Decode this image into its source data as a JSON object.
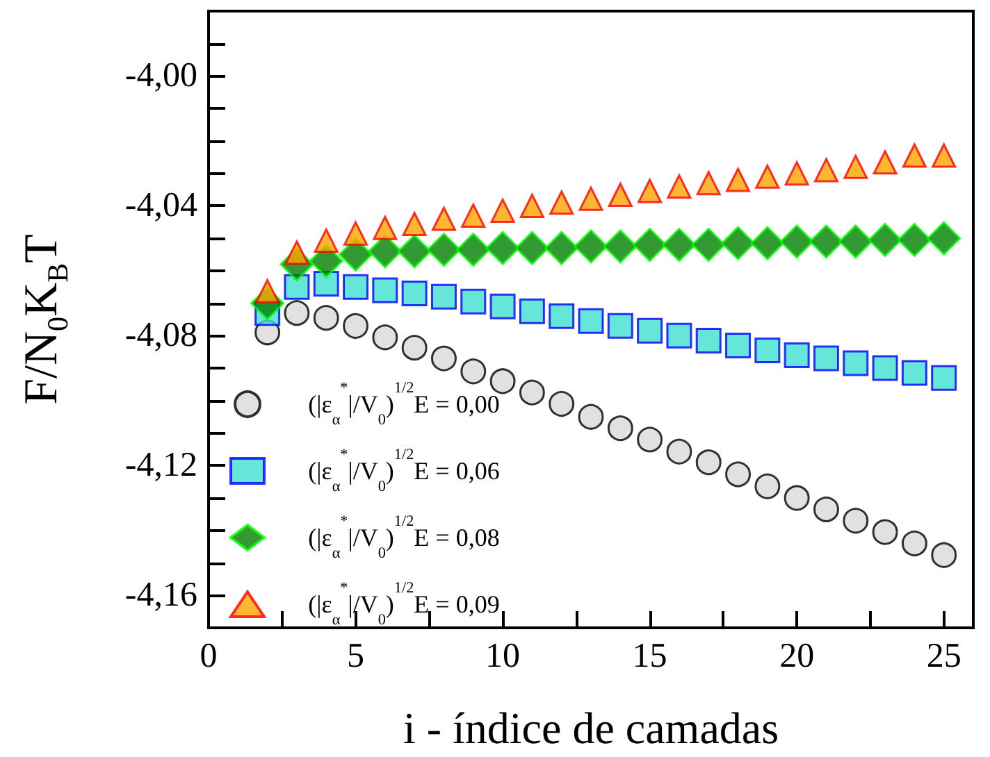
{
  "chart_data": {
    "type": "scatter",
    "xlabel": "i - índice de camadas",
    "ylabel": "F/N$_{0}$K$_{B}$T",
    "x": [
      2,
      3,
      4,
      5,
      6,
      7,
      8,
      9,
      10,
      11,
      12,
      13,
      14,
      15,
      16,
      17,
      18,
      19,
      20,
      21,
      22,
      23,
      24,
      25
    ],
    "xlim": [
      0,
      26
    ],
    "xticks": [
      0,
      {
        "value": 2.5,
        "label": null
      },
      5,
      {
        "value": 7.5,
        "label": null
      },
      10,
      {
        "value": 12.5,
        "label": null
      },
      15,
      {
        "value": 17.5,
        "label": null
      },
      20,
      {
        "value": 22.5,
        "label": null
      },
      25
    ],
    "ylim": [
      -4.17,
      -3.98
    ],
    "yticks": [
      {
        "value": -4.17,
        "label": null
      },
      {
        "value": -4.16,
        "label": "-4,16"
      },
      {
        "value": -4.15,
        "label": null
      },
      {
        "value": -4.14,
        "label": null
      },
      {
        "value": -4.13,
        "label": null
      },
      {
        "value": -4.12,
        "label": "-4,12"
      },
      {
        "value": -4.11,
        "label": null
      },
      {
        "value": -4.1,
        "label": null
      },
      {
        "value": -4.09,
        "label": null
      },
      {
        "value": -4.08,
        "label": "-4,08"
      },
      {
        "value": -4.07,
        "label": null
      },
      {
        "value": -4.06,
        "label": null
      },
      {
        "value": -4.05,
        "label": null
      },
      {
        "value": -4.04,
        "label": "-4,04"
      },
      {
        "value": -4.03,
        "label": null
      },
      {
        "value": -4.02,
        "label": null
      },
      {
        "value": -4.01,
        "label": null
      },
      {
        "value": -4,
        "label": "-4,00"
      },
      {
        "value": -3.99,
        "label": null
      }
    ],
    "legend": "bottom left",
    "series": [
      {
        "name": "(|ε$_{α}$$^{*}$|/V$_{0}$)$^{1/2}$E = 0,00",
        "color": "#d9d9d9",
        "marker": "circle",
        "values": [
          -4.079,
          -4.073,
          -4.0745,
          -4.077,
          -4.0805,
          -4.0837,
          -4.087,
          -4.091,
          -4.094,
          -4.0975,
          -4.101,
          -4.105,
          -4.1085,
          -4.112,
          -4.1157,
          -4.119,
          -4.1227,
          -4.1264,
          -4.13,
          -4.1335,
          -4.137,
          -4.1405,
          -4.144,
          -4.1476
        ]
      },
      {
        "name": "(|ε$_{α}$$^{*}$|/V$_{0}$)$^{1/2}$E = 0,06",
        "color": "#40e0d0",
        "marker": "square",
        "values": [
          -4.073,
          -4.065,
          -4.064,
          -4.065,
          -4.066,
          -4.067,
          -4.068,
          -4.0695,
          -4.071,
          -4.0725,
          -4.074,
          -4.0755,
          -4.077,
          -4.0785,
          -4.08,
          -4.0815,
          -4.083,
          -4.0845,
          -4.086,
          -4.087,
          -4.0885,
          -4.09,
          -4.0915,
          -4.093
        ]
      },
      {
        "name": "(|ε$_{α}$$^{*}$|/V$_{0}$)$^{1/2}$E = 0,08",
        "color": "#008000",
        "marker": "diamond",
        "values": [
          -4.07,
          -4.058,
          -4.057,
          -4.055,
          -4.054,
          -4.054,
          -4.0535,
          -4.0535,
          -4.053,
          -4.053,
          -4.053,
          -4.0525,
          -4.0525,
          -4.052,
          -4.052,
          -4.052,
          -4.0515,
          -4.0515,
          -4.051,
          -4.051,
          -4.051,
          -4.0505,
          -4.0505,
          -4.05
        ]
      },
      {
        "name": "(|ε$_{α}$$^{*}$|/V$_{0}$)$^{1/2}$E = 0,09",
        "color": "#ffa500",
        "marker": "triangle",
        "values": [
          -4.0663,
          -4.0544,
          -4.0507,
          -4.0485,
          -4.0468,
          -4.0456,
          -4.044,
          -4.043,
          -4.0415,
          -4.04,
          -4.039,
          -4.0378,
          -4.0366,
          -4.0354,
          -4.034,
          -4.033,
          -4.032,
          -4.031,
          -4.03,
          -4.029,
          -4.028,
          -4.0266,
          -4.0245,
          -4.0245
        ]
      }
    ]
  }
}
